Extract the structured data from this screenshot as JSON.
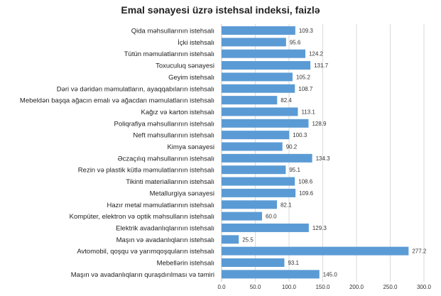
{
  "chart_data": {
    "type": "bar",
    "orientation": "horizontal",
    "title": "Emal sənayesi üzrə istehsal indeksi, faizlə",
    "xlabel": "",
    "ylabel": "",
    "xlim": [
      0,
      300
    ],
    "xticks": [
      "0.0",
      "50.0",
      "100.0",
      "150.0",
      "200.0",
      "250.0",
      "300.0"
    ],
    "grid": true,
    "bar_color": "#5b9bd5",
    "categories": [
      "Qida məhsullarının istehsalı",
      "İçki istehsalı",
      "Tütün məmulatlarının istehsalı",
      "Toxuculuq sənayesi",
      "Geyim istehsalı",
      "Dəri və dəridən məmulatların, ayaqqabıların istehsalı",
      "Mebeldən başqa ağacın emalı və ağacdan məmulatların istehsalı",
      "Kağız və karton istehsalı",
      "Poliqrafiya məhsullarının istehsalı",
      "Neft məhsullarının istehsalı",
      "Kimya sənayesi",
      "Əczaçılıq məhsullarının istehsalı",
      "Rezin və plastik kütlə məmulatlarının istehsalı",
      "Tikinti materiallarının istehsalı",
      "Metallurgiya sənayesi",
      "Hazır metal məmulatlarının istehsalı",
      "Kompüter, elektron və optik məhsulların istehsalı",
      "Elektrik avadanlıqlarının istehsalı",
      "Maşın və avadanlıqların istehsalı",
      "Avtomobil, qoşqu və yarımqoşquların istehsalı",
      "Mebellərin istehsalı",
      "Maşın və avadanlıqların quraşdırılması və təmiri"
    ],
    "values": [
      109.3,
      95.6,
      124.2,
      131.7,
      105.2,
      108.7,
      82.4,
      113.1,
      128.9,
      100.3,
      90.2,
      134.3,
      95.1,
      108.6,
      109.6,
      82.1,
      60.0,
      129.3,
      25.5,
      277.2,
      93.1,
      145.0
    ],
    "value_labels": [
      "109.3",
      "95.6",
      "124.2",
      "131.7",
      "105.2",
      "108.7",
      "82.4",
      "113.1",
      "128.9",
      "100.3",
      "90.2",
      "134.3",
      "95.1",
      "108.6",
      "109.6",
      "82.1",
      "60.0",
      "129.3",
      "25.5",
      "277.2",
      "93.1",
      "145.0"
    ]
  }
}
